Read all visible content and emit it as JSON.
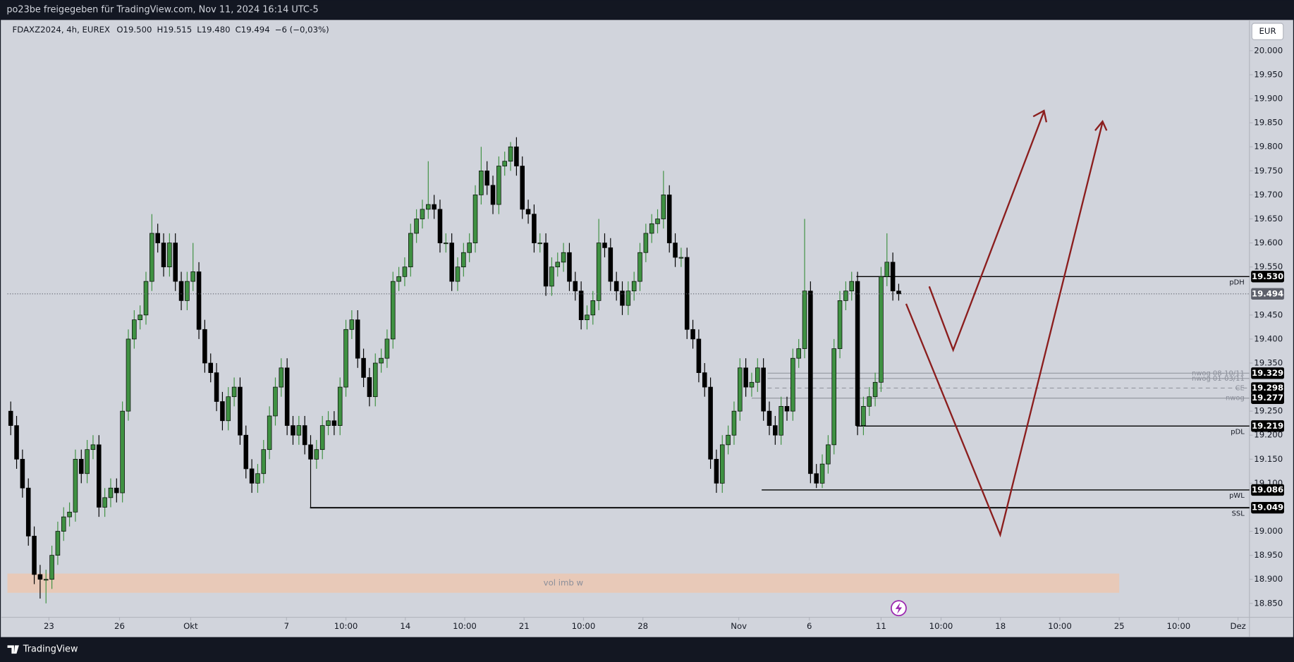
{
  "header": "po23be freigegeben für TradingView.com, Nov 11, 2024 16:14 UTC-5",
  "footer": "TradingView",
  "currency": "EUR",
  "chart_data": {
    "type": "candlestick",
    "legend": {
      "symbol": "FDAXZ2024, 4h, EUREX",
      "ohlc": [
        "O19.500",
        "H19.515",
        "L19.480",
        "C19.494"
      ],
      "change": "−6 (−0,03%)"
    },
    "up_color": "#3f9142",
    "down_color": "#000000",
    "xlim": [
      -0.56,
      210.64
    ],
    "xticks": [
      {
        "value": 6.5,
        "label": "23"
      },
      {
        "value": 18.5,
        "label": "26"
      },
      {
        "value": 30.6,
        "label": "Okt"
      },
      {
        "value": 46.9,
        "label": "7"
      },
      {
        "value": 57.0,
        "label": "10:00"
      },
      {
        "value": 67.1,
        "label": "14"
      },
      {
        "value": 77.2,
        "label": "10:00"
      },
      {
        "value": 87.3,
        "label": "21"
      },
      {
        "value": 97.4,
        "label": "10:00"
      },
      {
        "value": 107.5,
        "label": "28"
      },
      {
        "value": 123.8,
        "label": "Nov"
      },
      {
        "value": 135.8,
        "label": "6"
      },
      {
        "value": 148.0,
        "label": "11"
      },
      {
        "value": 158.2,
        "label": "10:00"
      },
      {
        "value": 168.3,
        "label": "18"
      },
      {
        "value": 178.4,
        "label": "10:00"
      },
      {
        "value": 188.5,
        "label": "25"
      },
      {
        "value": 198.6,
        "label": "10:00"
      },
      {
        "value": 208.7,
        "label": "Dez"
      }
    ],
    "ylim": [
      18.821,
      20.064
    ],
    "yticks": [
      {
        "value": 20.0,
        "label": "20.000"
      },
      {
        "value": 19.95,
        "label": "19.950"
      },
      {
        "value": 19.9,
        "label": "19.900"
      },
      {
        "value": 19.85,
        "label": "19.850"
      },
      {
        "value": 19.8,
        "label": "19.800"
      },
      {
        "value": 19.75,
        "label": "19.750"
      },
      {
        "value": 19.7,
        "label": "19.700"
      },
      {
        "value": 19.65,
        "label": "19.650"
      },
      {
        "value": 19.6,
        "label": "19.600"
      },
      {
        "value": 19.55,
        "label": "19.550"
      },
      {
        "value": 19.45,
        "label": "19.450"
      },
      {
        "value": 19.4,
        "label": "19.400"
      },
      {
        "value": 19.35,
        "label": "19.350"
      },
      {
        "value": 19.25,
        "label": "19.250"
      },
      {
        "value": 19.2,
        "label": "19.200"
      },
      {
        "value": 19.15,
        "label": "19.150"
      },
      {
        "value": 19.1,
        "label": "19.100"
      },
      {
        "value": 19.0,
        "label": "19.000"
      },
      {
        "value": 18.95,
        "label": "18.950"
      },
      {
        "value": 18.9,
        "label": "18.900"
      },
      {
        "value": 18.85,
        "label": "18.850"
      }
    ],
    "ohlc": [
      [
        19.25,
        19.27,
        19.2,
        19.22
      ],
      [
        19.22,
        19.24,
        19.13,
        19.15
      ],
      [
        19.15,
        19.17,
        19.07,
        19.09
      ],
      [
        19.09,
        19.11,
        18.97,
        18.99
      ],
      [
        18.99,
        19.01,
        18.89,
        18.91
      ],
      [
        18.91,
        18.93,
        18.86,
        18.9
      ],
      [
        18.9,
        18.92,
        18.85,
        18.9
      ],
      [
        18.9,
        18.97,
        18.88,
        18.95
      ],
      [
        18.95,
        19.02,
        18.93,
        19.0
      ],
      [
        19.0,
        19.05,
        18.98,
        19.03
      ],
      [
        19.03,
        19.06,
        19.01,
        19.04
      ],
      [
        19.04,
        19.17,
        19.02,
        19.15
      ],
      [
        19.15,
        19.17,
        19.1,
        19.12
      ],
      [
        19.12,
        19.19,
        19.1,
        19.17
      ],
      [
        19.17,
        19.2,
        19.15,
        19.18
      ],
      [
        19.18,
        19.2,
        19.03,
        19.05
      ],
      [
        19.05,
        19.09,
        19.03,
        19.07
      ],
      [
        19.07,
        19.11,
        19.05,
        19.09
      ],
      [
        19.09,
        19.11,
        19.06,
        19.08
      ],
      [
        19.08,
        19.27,
        19.06,
        19.25
      ],
      [
        19.25,
        19.42,
        19.23,
        19.4
      ],
      [
        19.4,
        19.46,
        19.38,
        19.44
      ],
      [
        19.44,
        19.47,
        19.42,
        19.45
      ],
      [
        19.45,
        19.54,
        19.43,
        19.52
      ],
      [
        19.52,
        19.66,
        19.5,
        19.62
      ],
      [
        19.62,
        19.64,
        19.58,
        19.6
      ],
      [
        19.6,
        19.62,
        19.53,
        19.55
      ],
      [
        19.55,
        19.62,
        19.53,
        19.6
      ],
      [
        19.6,
        19.62,
        19.5,
        19.52
      ],
      [
        19.52,
        19.54,
        19.46,
        19.48
      ],
      [
        19.48,
        19.54,
        19.46,
        19.52
      ],
      [
        19.52,
        19.6,
        19.5,
        19.54
      ],
      [
        19.54,
        19.56,
        19.4,
        19.42
      ],
      [
        19.42,
        19.44,
        19.33,
        19.35
      ],
      [
        19.35,
        19.37,
        19.31,
        19.33
      ],
      [
        19.33,
        19.35,
        19.25,
        19.27
      ],
      [
        19.27,
        19.29,
        19.21,
        19.23
      ],
      [
        19.23,
        19.3,
        19.21,
        19.28
      ],
      [
        19.28,
        19.32,
        19.26,
        19.3
      ],
      [
        19.3,
        19.32,
        19.18,
        19.2
      ],
      [
        19.2,
        19.22,
        19.11,
        19.13
      ],
      [
        19.13,
        19.15,
        19.08,
        19.1
      ],
      [
        19.1,
        19.14,
        19.08,
        19.12
      ],
      [
        19.12,
        19.19,
        19.1,
        19.17
      ],
      [
        19.17,
        19.26,
        19.15,
        19.24
      ],
      [
        19.24,
        19.32,
        19.22,
        19.3
      ],
      [
        19.3,
        19.36,
        19.28,
        19.34
      ],
      [
        19.34,
        19.36,
        19.2,
        19.22
      ],
      [
        19.22,
        19.24,
        19.18,
        19.2
      ],
      [
        19.2,
        19.24,
        19.18,
        19.22
      ],
      [
        19.22,
        19.24,
        19.16,
        19.18
      ],
      [
        19.18,
        19.2,
        19.05,
        19.15
      ],
      [
        19.15,
        19.19,
        19.13,
        19.17
      ],
      [
        19.17,
        19.24,
        19.15,
        19.22
      ],
      [
        19.22,
        19.25,
        19.2,
        19.23
      ],
      [
        19.23,
        19.25,
        19.2,
        19.22
      ],
      [
        19.22,
        19.32,
        19.2,
        19.3
      ],
      [
        19.3,
        19.44,
        19.28,
        19.42
      ],
      [
        19.42,
        19.46,
        19.4,
        19.44
      ],
      [
        19.44,
        19.46,
        19.34,
        19.36
      ],
      [
        19.36,
        19.38,
        19.3,
        19.32
      ],
      [
        19.32,
        19.34,
        19.26,
        19.28
      ],
      [
        19.28,
        19.37,
        19.26,
        19.35
      ],
      [
        19.35,
        19.38,
        19.33,
        19.36
      ],
      [
        19.36,
        19.42,
        19.34,
        19.4
      ],
      [
        19.4,
        19.54,
        19.38,
        19.52
      ],
      [
        19.52,
        19.55,
        19.5,
        19.53
      ],
      [
        19.53,
        19.57,
        19.51,
        19.55
      ],
      [
        19.55,
        19.64,
        19.53,
        19.62
      ],
      [
        19.62,
        19.67,
        19.6,
        19.65
      ],
      [
        19.65,
        19.69,
        19.63,
        19.67
      ],
      [
        19.67,
        19.77,
        19.65,
        19.68
      ],
      [
        19.68,
        19.7,
        19.65,
        19.67
      ],
      [
        19.67,
        19.69,
        19.58,
        19.6
      ],
      [
        19.6,
        19.62,
        19.58,
        19.6
      ],
      [
        19.6,
        19.62,
        19.5,
        19.52
      ],
      [
        19.52,
        19.57,
        19.5,
        19.55
      ],
      [
        19.55,
        19.6,
        19.53,
        19.58
      ],
      [
        19.58,
        19.62,
        19.56,
        19.6
      ],
      [
        19.6,
        19.72,
        19.58,
        19.7
      ],
      [
        19.7,
        19.8,
        19.68,
        19.75
      ],
      [
        19.75,
        19.77,
        19.7,
        19.72
      ],
      [
        19.72,
        19.74,
        19.66,
        19.68
      ],
      [
        19.68,
        19.78,
        19.66,
        19.76
      ],
      [
        19.76,
        19.79,
        19.74,
        19.77
      ],
      [
        19.77,
        19.81,
        19.75,
        19.8
      ],
      [
        19.8,
        19.82,
        19.74,
        19.76
      ],
      [
        19.76,
        19.78,
        19.65,
        19.67
      ],
      [
        19.67,
        19.69,
        19.64,
        19.66
      ],
      [
        19.66,
        19.68,
        19.58,
        19.6
      ],
      [
        19.6,
        19.62,
        19.58,
        19.6
      ],
      [
        19.6,
        19.62,
        19.49,
        19.51
      ],
      [
        19.51,
        19.57,
        19.49,
        19.55
      ],
      [
        19.55,
        19.58,
        19.53,
        19.56
      ],
      [
        19.56,
        19.6,
        19.54,
        19.58
      ],
      [
        19.58,
        19.6,
        19.5,
        19.52
      ],
      [
        19.52,
        19.54,
        19.48,
        19.5
      ],
      [
        19.5,
        19.52,
        19.42,
        19.44
      ],
      [
        19.44,
        19.47,
        19.42,
        19.45
      ],
      [
        19.45,
        19.5,
        19.43,
        19.48
      ],
      [
        19.48,
        19.65,
        19.46,
        19.6
      ],
      [
        19.6,
        19.62,
        19.57,
        19.59
      ],
      [
        19.59,
        19.61,
        19.5,
        19.52
      ],
      [
        19.52,
        19.54,
        19.48,
        19.5
      ],
      [
        19.5,
        19.52,
        19.45,
        19.47
      ],
      [
        19.47,
        19.52,
        19.45,
        19.5
      ],
      [
        19.5,
        19.54,
        19.48,
        19.52
      ],
      [
        19.52,
        19.6,
        19.5,
        19.58
      ],
      [
        19.58,
        19.64,
        19.56,
        19.62
      ],
      [
        19.62,
        19.66,
        19.6,
        19.64
      ],
      [
        19.64,
        19.67,
        19.62,
        19.65
      ],
      [
        19.65,
        19.75,
        19.63,
        19.7
      ],
      [
        19.7,
        19.72,
        19.58,
        19.6
      ],
      [
        19.6,
        19.62,
        19.55,
        19.57
      ],
      [
        19.57,
        19.59,
        19.55,
        19.57
      ],
      [
        19.57,
        19.59,
        19.4,
        19.42
      ],
      [
        19.42,
        19.44,
        19.38,
        19.4
      ],
      [
        19.4,
        19.42,
        19.31,
        19.33
      ],
      [
        19.33,
        19.35,
        19.28,
        19.3
      ],
      [
        19.3,
        19.32,
        19.13,
        19.15
      ],
      [
        19.15,
        19.17,
        19.08,
        19.1
      ],
      [
        19.1,
        19.2,
        19.08,
        19.18
      ],
      [
        19.18,
        19.22,
        19.16,
        19.2
      ],
      [
        19.2,
        19.27,
        19.18,
        19.25
      ],
      [
        19.25,
        19.36,
        19.23,
        19.34
      ],
      [
        19.34,
        19.36,
        19.28,
        19.3
      ],
      [
        19.3,
        19.33,
        19.28,
        19.31
      ],
      [
        19.31,
        19.36,
        19.29,
        19.34
      ],
      [
        19.34,
        19.36,
        19.23,
        19.25
      ],
      [
        19.25,
        19.27,
        19.2,
        19.22
      ],
      [
        19.22,
        19.24,
        19.18,
        19.2
      ],
      [
        19.2,
        19.28,
        19.18,
        19.26
      ],
      [
        19.26,
        19.28,
        19.23,
        19.25
      ],
      [
        19.25,
        19.38,
        19.23,
        19.36
      ],
      [
        19.36,
        19.4,
        19.34,
        19.38
      ],
      [
        19.38,
        19.65,
        19.36,
        19.5
      ],
      [
        19.5,
        19.52,
        19.1,
        19.12
      ],
      [
        19.12,
        19.14,
        19.09,
        19.1
      ],
      [
        19.1,
        19.16,
        19.09,
        19.14
      ],
      [
        19.14,
        19.2,
        19.12,
        19.18
      ],
      [
        19.18,
        19.4,
        19.16,
        19.38
      ],
      [
        19.38,
        19.5,
        19.36,
        19.48
      ],
      [
        19.48,
        19.52,
        19.46,
        19.5
      ],
      [
        19.5,
        19.54,
        19.48,
        19.52
      ],
      [
        19.52,
        19.54,
        19.2,
        19.22
      ],
      [
        19.22,
        19.28,
        19.2,
        19.26
      ],
      [
        19.26,
        19.3,
        19.24,
        19.28
      ],
      [
        19.28,
        19.33,
        19.26,
        19.31
      ],
      [
        19.31,
        19.55,
        19.29,
        19.53
      ],
      [
        19.53,
        19.62,
        19.51,
        19.56
      ],
      [
        19.56,
        19.58,
        19.48,
        19.5
      ],
      [
        19.5,
        19.515,
        19.48,
        19.494
      ]
    ],
    "last": {
      "value": 19.494,
      "value_label": "19.494",
      "color": "#5d606b"
    },
    "levels": [
      {
        "name": "pDH",
        "value": 19.53,
        "value_label": "19.530",
        "x_start": 143.8,
        "color": "#000000",
        "style": "solid"
      },
      {
        "name": "nwog 08-10/11",
        "value": 19.329,
        "value_label": "19.329",
        "x_start": 128.7,
        "color": "#9598a1",
        "style": "solid"
      },
      {
        "name": "nwog 01-03/11",
        "value": 19.318,
        "x_start": 128.7,
        "color": "#9598a1",
        "style": "solid"
      },
      {
        "name": "CE",
        "value": 19.298,
        "value_label": "19.298",
        "x_start": 128.7,
        "color": "#9598a1",
        "style": "dashed"
      },
      {
        "name": "nwog",
        "value": 19.277,
        "value_label": "19.277",
        "x_start": 126.0,
        "color": "#9598a1",
        "style": "solid"
      },
      {
        "name": "pDL",
        "value": 19.219,
        "value_label": "19.219",
        "x_start": 143.8,
        "color": "#000000",
        "style": "solid"
      },
      {
        "name": "pWL",
        "value": 19.086,
        "value_label": "19.086",
        "x_start": 127.7,
        "color": "#000000",
        "style": "solid"
      },
      {
        "name": "SSL",
        "value": 19.049,
        "value_label": "19.049",
        "x_start": 50.9,
        "color": "#000000",
        "style": "solid"
      }
    ],
    "zone": {
      "label": "vol imb w",
      "from": 18.872,
      "to": 18.912,
      "x_end": 188.5,
      "color": "#e8c9b8"
    }
  }
}
